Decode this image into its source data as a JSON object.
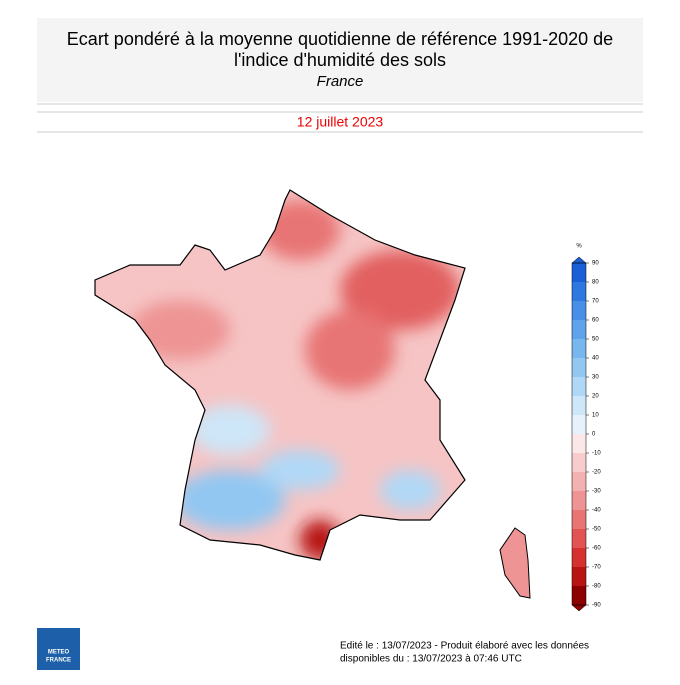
{
  "header": {
    "title_line1": "Ecart pondéré à la moyenne quotidienne de référence 1991-2020 de",
    "title_line2": "l'indice d'humidité des sols",
    "subtitle": "France",
    "date": "12 juillet 2023"
  },
  "legend": {
    "unit": "%",
    "ticks": [
      90,
      80,
      70,
      60,
      50,
      40,
      30,
      20,
      10,
      0,
      -10,
      -20,
      -30,
      -40,
      -50,
      -60,
      -70,
      -80,
      -90
    ],
    "colors": [
      "#1b5fd6",
      "#2f78e0",
      "#4a8fe6",
      "#5fa3ea",
      "#78b6ee",
      "#92c7f2",
      "#b0d8f6",
      "#cde6f8",
      "#e6f1fb",
      "#fbe7e7",
      "#f7cccc",
      "#f3b1b1",
      "#ee9494",
      "#e87474",
      "#e25353",
      "#d63030",
      "#b81414",
      "#8c0000"
    ]
  },
  "logo": {
    "line1": "METEO",
    "line2": "FRANCE"
  },
  "footer": {
    "line1": "Edité le : 13/07/2023 - Produit élaboré avec les données",
    "line2": "disponibles du : 13/07/2023 à 07:46 UTC"
  }
}
